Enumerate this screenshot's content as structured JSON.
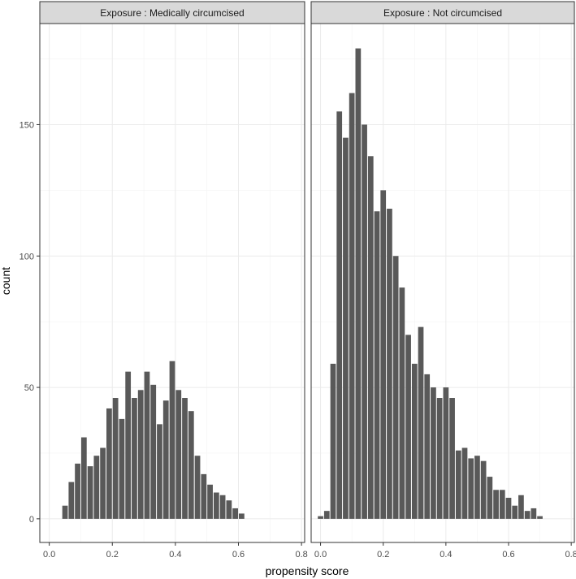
{
  "chart_data": {
    "type": "bar",
    "subtype": "faceted-histogram",
    "xlabel": "propensity score",
    "ylabel": "count",
    "xlim": [
      -0.03,
      0.81
    ],
    "ylim": [
      -9,
      190
    ],
    "x_ticks": [
      "0.0",
      "0.2",
      "0.4",
      "0.6",
      "0.8"
    ],
    "x_tick_values": [
      0.0,
      0.2,
      0.4,
      0.6,
      0.8
    ],
    "y_ticks": [
      "0",
      "50",
      "100",
      "150"
    ],
    "y_tick_values": [
      0,
      50,
      100,
      150
    ],
    "grid": true,
    "bar_color": "#595959",
    "strip_color": "#d9d9d9",
    "bin_width": 0.02,
    "panels": [
      {
        "strip_label": "Exposure : Medically circumcised",
        "bins": [
          0.05,
          0.07,
          0.09,
          0.11,
          0.13,
          0.15,
          0.17,
          0.19,
          0.21,
          0.23,
          0.25,
          0.27,
          0.29,
          0.31,
          0.33,
          0.35,
          0.37,
          0.39,
          0.41,
          0.43,
          0.45,
          0.47,
          0.49,
          0.51,
          0.53,
          0.55,
          0.57,
          0.59,
          0.61,
          0.63,
          0.65,
          0.67,
          0.69,
          0.71,
          0.73,
          0.75
        ],
        "counts": [
          5,
          14,
          21,
          31,
          20,
          24,
          27,
          42,
          46,
          38,
          56,
          46,
          49,
          56,
          51,
          36,
          45,
          60,
          49,
          46,
          41,
          24,
          17,
          13,
          10,
          9,
          7,
          4,
          2,
          0,
          0,
          0,
          0,
          0,
          0,
          0
        ]
      },
      {
        "strip_label": "Exposure : Not circumcised",
        "bins": [
          0.0,
          0.02,
          0.04,
          0.06,
          0.08,
          0.1,
          0.12,
          0.14,
          0.16,
          0.18,
          0.2,
          0.22,
          0.24,
          0.26,
          0.28,
          0.3,
          0.32,
          0.34,
          0.36,
          0.38,
          0.4,
          0.42,
          0.44,
          0.46,
          0.48,
          0.5,
          0.52,
          0.54,
          0.56,
          0.58,
          0.6,
          0.62,
          0.64,
          0.66,
          0.68,
          0.7,
          0.72,
          0.74,
          0.76
        ],
        "counts": [
          1,
          3,
          59,
          155,
          145,
          162,
          179,
          150,
          138,
          117,
          125,
          118,
          100,
          88,
          70,
          59,
          73,
          55,
          50,
          46,
          50,
          46,
          26,
          27,
          23,
          24,
          22,
          16,
          11,
          11,
          8,
          5,
          9,
          3,
          4,
          1,
          0,
          0,
          0
        ]
      }
    ]
  }
}
